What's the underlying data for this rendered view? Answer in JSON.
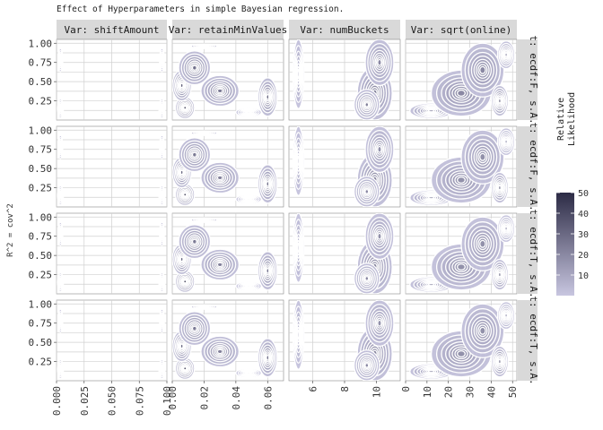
{
  "title": "Effect of Hyperparameters in simple Bayesian regression.",
  "chart_data": {
    "type": "heatmap",
    "title": "Effect of Hyperparameters in simple Bayesian regression.",
    "ylabel": "R^2 = cov^2",
    "y_ticks": [
      "0.25",
      "0.50",
      "0.75",
      "1.00"
    ],
    "y_tick_values": [
      0.25,
      0.5,
      0.75,
      1.0
    ],
    "columns": [
      {
        "label": "Var: shiftAmount",
        "xlim": [
          0,
          0.1
        ],
        "ticks": [
          0.0,
          0.025,
          0.05,
          0.075,
          0.1
        ],
        "tick_labels": [
          "0.000",
          "0.025",
          "0.050",
          "0.075",
          "0.100"
        ]
      },
      {
        "label": "Var: retainMinValues",
        "xlim": [
          0,
          0.07
        ],
        "ticks": [
          0.0,
          0.02,
          0.04,
          0.06
        ],
        "tick_labels": [
          "0.00",
          "0.02",
          "0.04",
          "0.06"
        ]
      },
      {
        "label": "Var: numBuckets",
        "xlim": [
          4.5,
          11.5
        ],
        "ticks": [
          6,
          8,
          10
        ],
        "tick_labels": [
          "6",
          "8",
          "10"
        ]
      },
      {
        "label": "Var: sqrt(online)",
        "xlim": [
          0,
          52
        ],
        "ticks": [
          0,
          10,
          20,
          30,
          40,
          50
        ],
        "tick_labels": [
          "0",
          "10",
          "20",
          "30",
          "40",
          "50"
        ]
      }
    ],
    "rows": [
      {
        "label": "t: ecdf:F, s.A."
      },
      {
        "label": "t: ecdf:F, s.A."
      },
      {
        "label": "t: ecdf:T, s.A."
      },
      {
        "label": "t: ecdf:T, s.A."
      }
    ],
    "legend": {
      "title": [
        "Relative",
        "Likelihood"
      ],
      "placement": "right",
      "range": [
        0,
        50
      ],
      "ticks": [
        10,
        20,
        30,
        40,
        50
      ],
      "tick_labels": [
        "10",
        "20",
        "30",
        "40",
        "50"
      ],
      "color_low": "#c8c6e0",
      "color_high": "#2c2b45"
    },
    "grid": true,
    "strip_color": "#d9d9d9"
  }
}
